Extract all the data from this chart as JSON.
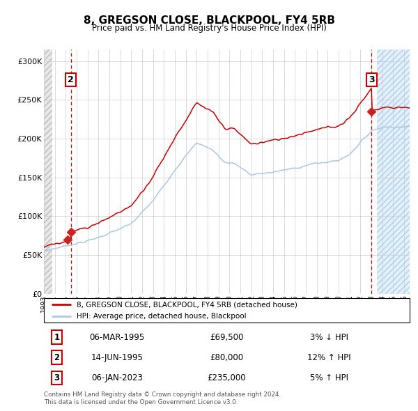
{
  "title": "8, GREGSON CLOSE, BLACKPOOL, FY4 5RB",
  "subtitle": "Price paid vs. HM Land Registry's House Price Index (HPI)",
  "legend_line1": "8, GREGSON CLOSE, BLACKPOOL, FY4 5RB (detached house)",
  "legend_line2": "HPI: Average price, detached house, Blackpool",
  "hpi_color": "#a8c8e8",
  "price_color": "#cc0000",
  "marker_color": "#cc2222",
  "vline_color": "#cc0000",
  "table_rows": [
    {
      "num": "1",
      "date": "06-MAR-1995",
      "price": "£69,500",
      "rel": "3% ↓ HPI"
    },
    {
      "num": "2",
      "date": "14-JUN-1995",
      "price": "£80,000",
      "rel": "12% ↑ HPI"
    },
    {
      "num": "3",
      "date": "06-JAN-2023",
      "price": "£235,000",
      "rel": "5% ↑ HPI"
    }
  ],
  "footer": "Contains HM Land Registry data © Crown copyright and database right 2024.\nThis data is licensed under the Open Government Licence v3.0.",
  "yticks": [
    0,
    50000,
    100000,
    150000,
    200000,
    250000,
    300000
  ],
  "ylabels": [
    "£0",
    "£50K",
    "£100K",
    "£150K",
    "£200K",
    "£250K",
    "£300K"
  ],
  "sale1_year": 1995.18,
  "sale1_price": 69500,
  "sale2_year": 1995.46,
  "sale2_price": 80000,
  "sale3_year": 2023.02,
  "sale3_price": 235000,
  "xmin": 1993.0,
  "xmax": 2026.5,
  "ymin": 0,
  "ymax": 315000,
  "hatch_left_end": 1993.75,
  "hatch_right_start": 2023.5
}
